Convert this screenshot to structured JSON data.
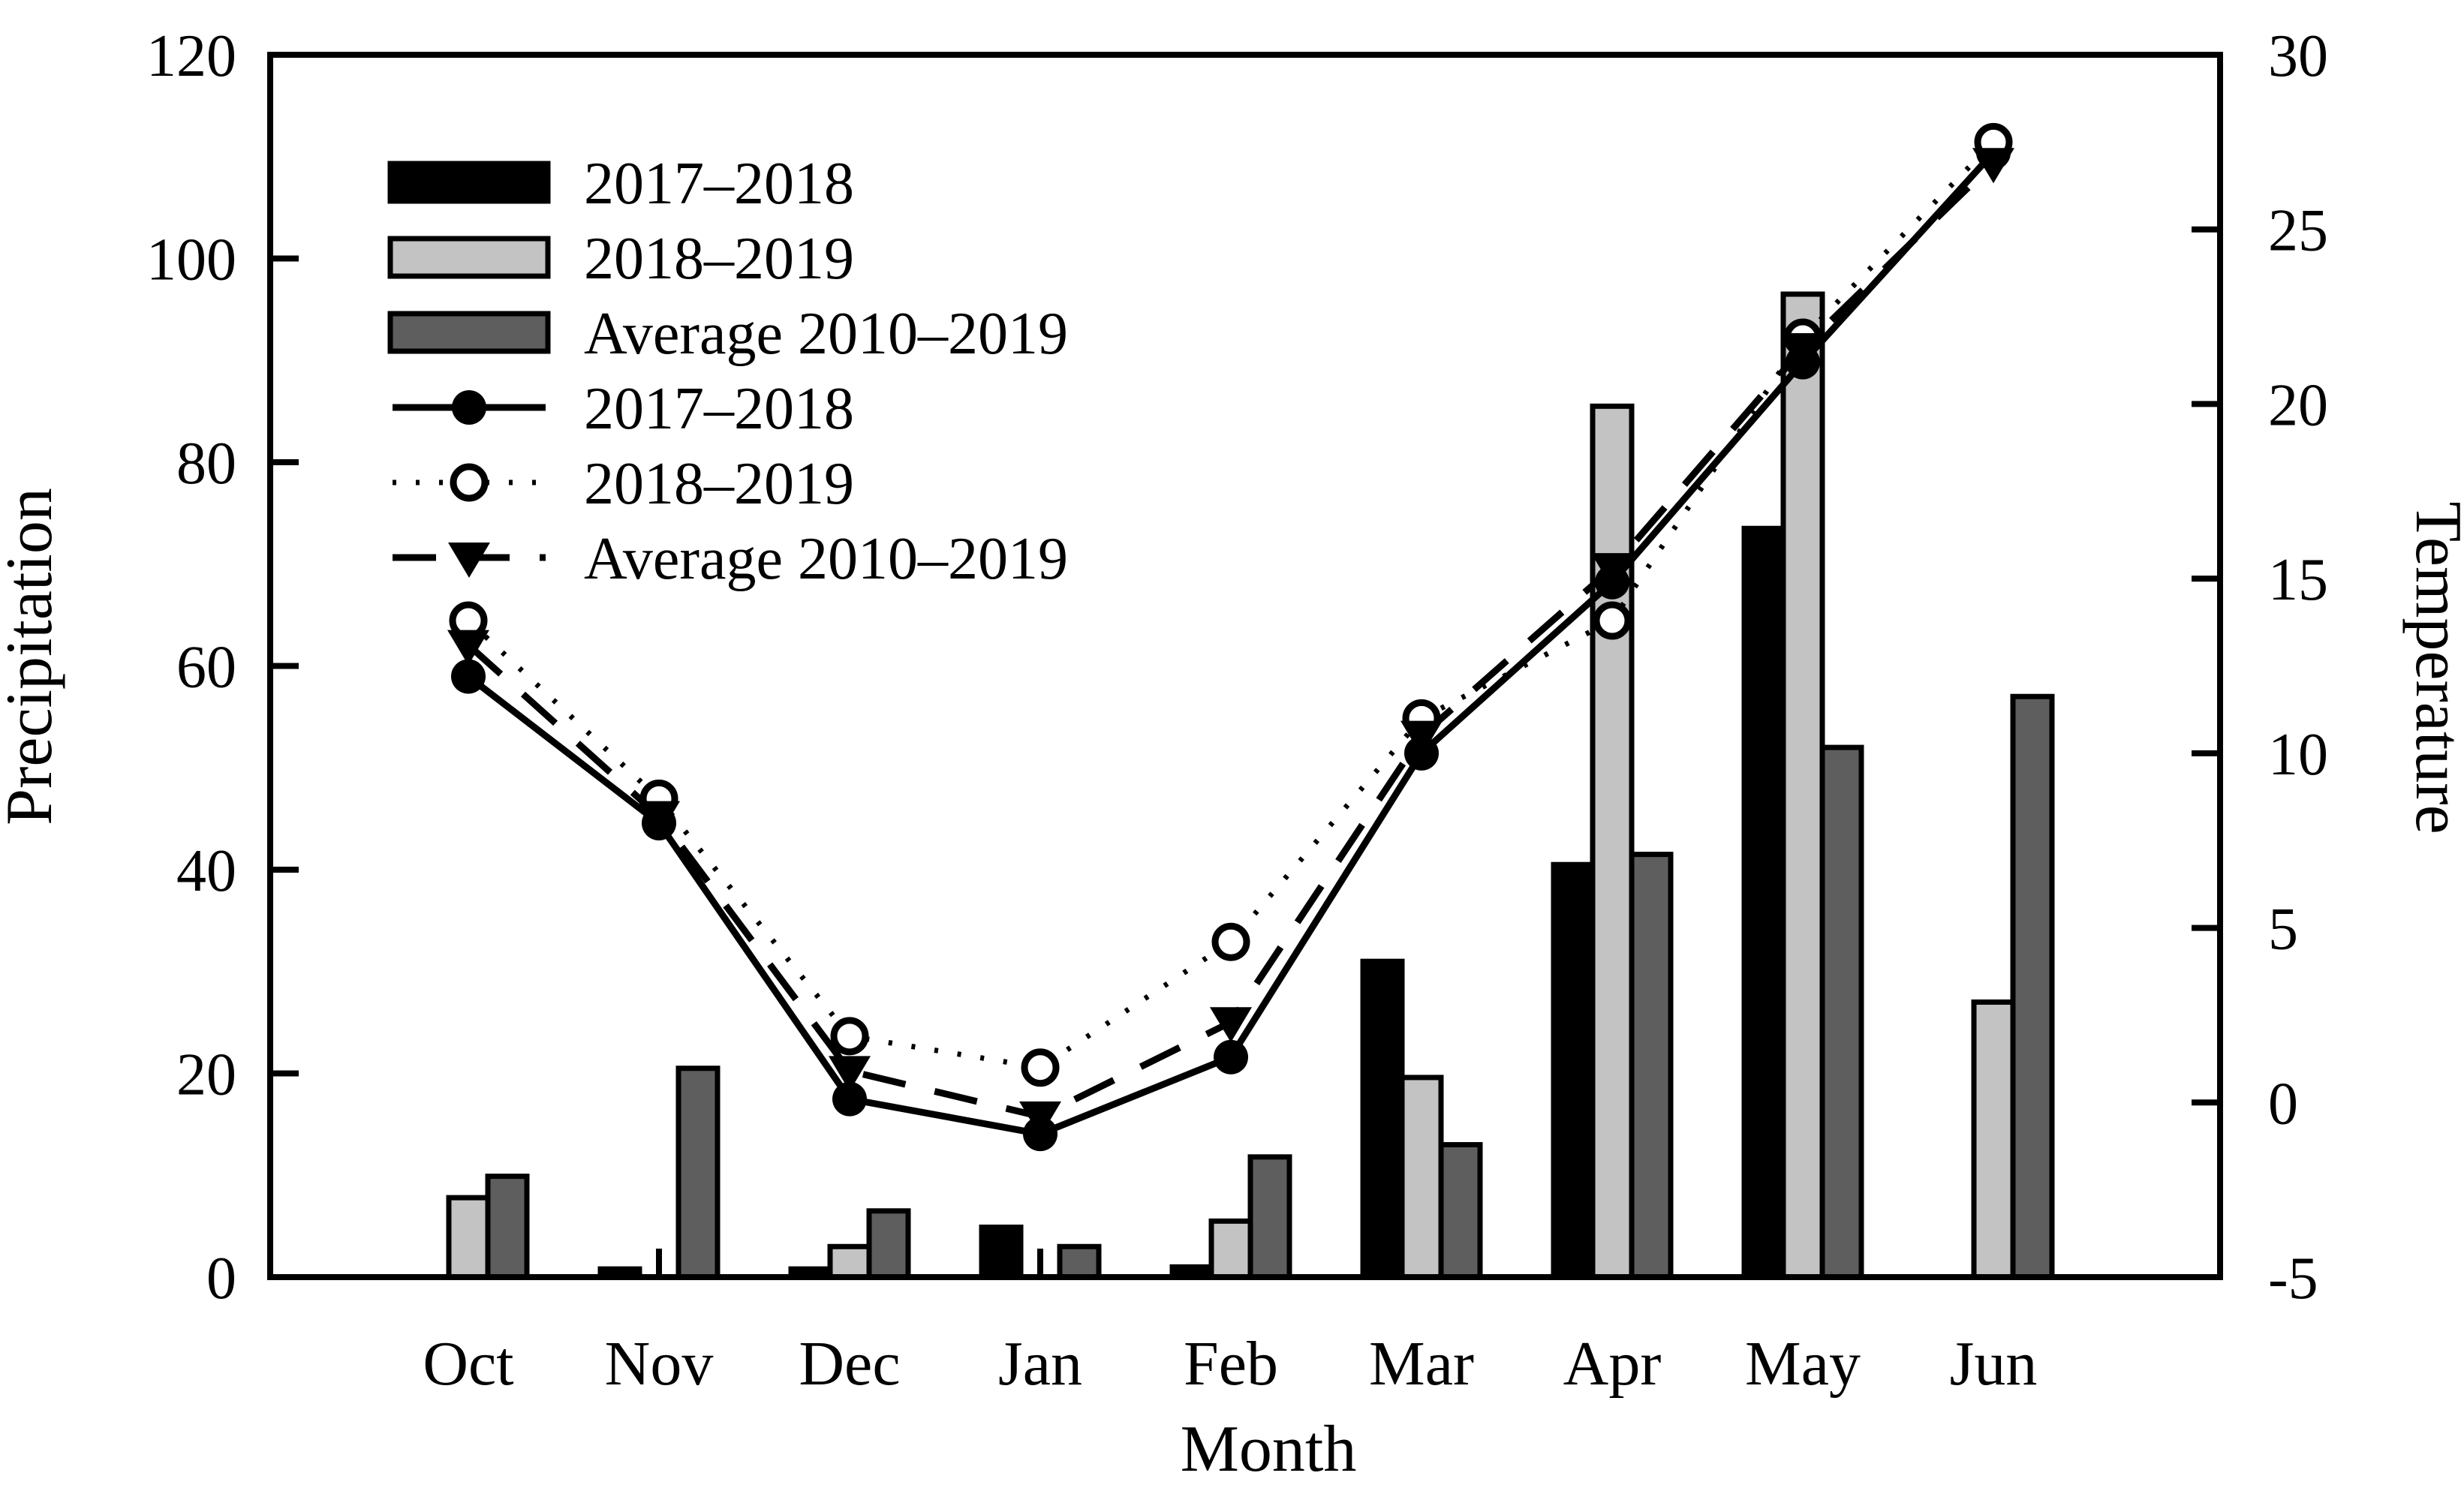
{
  "figure": {
    "left_axis_title": "Precipitation",
    "right_axis_title": "Temperature",
    "x_axis_title": "Month"
  },
  "chart_data": {
    "type": "bar+line combo (precipitation bars, temperature lines)",
    "categories": [
      "Oct",
      "Nov",
      "Dec",
      "Jan",
      "Feb",
      "Mar",
      "Apr",
      "May",
      "Jun"
    ],
    "left_axis": {
      "label": "Precipitation",
      "min": 0,
      "max": 120,
      "tick_labels": [
        0,
        20,
        40,
        60,
        80,
        100,
        120
      ]
    },
    "right_axis": {
      "label": "Temperature",
      "min": -5,
      "max": 30,
      "tick_labels": [
        -5,
        0,
        5,
        10,
        15,
        20,
        25,
        30
      ]
    },
    "x_axis": {
      "label": "Month"
    },
    "legend_position": "upper-left-inside",
    "grid": "off",
    "colors": {
      "bar_2017_2018": "#000000",
      "bar_2018_2019": "#c3c3c3",
      "bar_average": "#5e5e5e",
      "line_color": "#000000",
      "frame": "#000000"
    },
    "bar_series": [
      {
        "name": "2017–2018",
        "color": "#000000",
        "values": [
          0,
          0.8,
          0.8,
          4.9,
          1.0,
          31,
          40.5,
          73.5,
          0
        ]
      },
      {
        "name": "2018–2019",
        "color": "#c3c3c3",
        "values": [
          7.8,
          0,
          3.0,
          0,
          5.5,
          19.6,
          85.5,
          96.5,
          27
        ]
      },
      {
        "name": "Average 2010–2019",
        "color": "#5e5e5e",
        "values": [
          9.9,
          20.5,
          6.5,
          3.0,
          11.8,
          13.0,
          41.5,
          52,
          57
        ]
      }
    ],
    "line_series": [
      {
        "name": "2017–2018",
        "axis": "right",
        "line_style": "solid",
        "marker": "filled-circle",
        "values": [
          12.2,
          8.0,
          0.1,
          -0.9,
          1.3,
          10.0,
          14.9,
          21.2,
          27.2
        ]
      },
      {
        "name": "2018–2019",
        "axis": "right",
        "line_style": "dotted",
        "marker": "open-circle",
        "values": [
          13.8,
          8.7,
          1.9,
          1.0,
          4.6,
          11.0,
          13.8,
          21.9,
          27.5
        ]
      },
      {
        "name": "Average 2010–2019",
        "axis": "right",
        "line_style": "dashed",
        "marker": "filled-triangle-down",
        "values": [
          13.1,
          8.2,
          0.9,
          -0.4,
          2.3,
          10.5,
          15.3,
          21.6,
          26.9
        ]
      }
    ]
  }
}
